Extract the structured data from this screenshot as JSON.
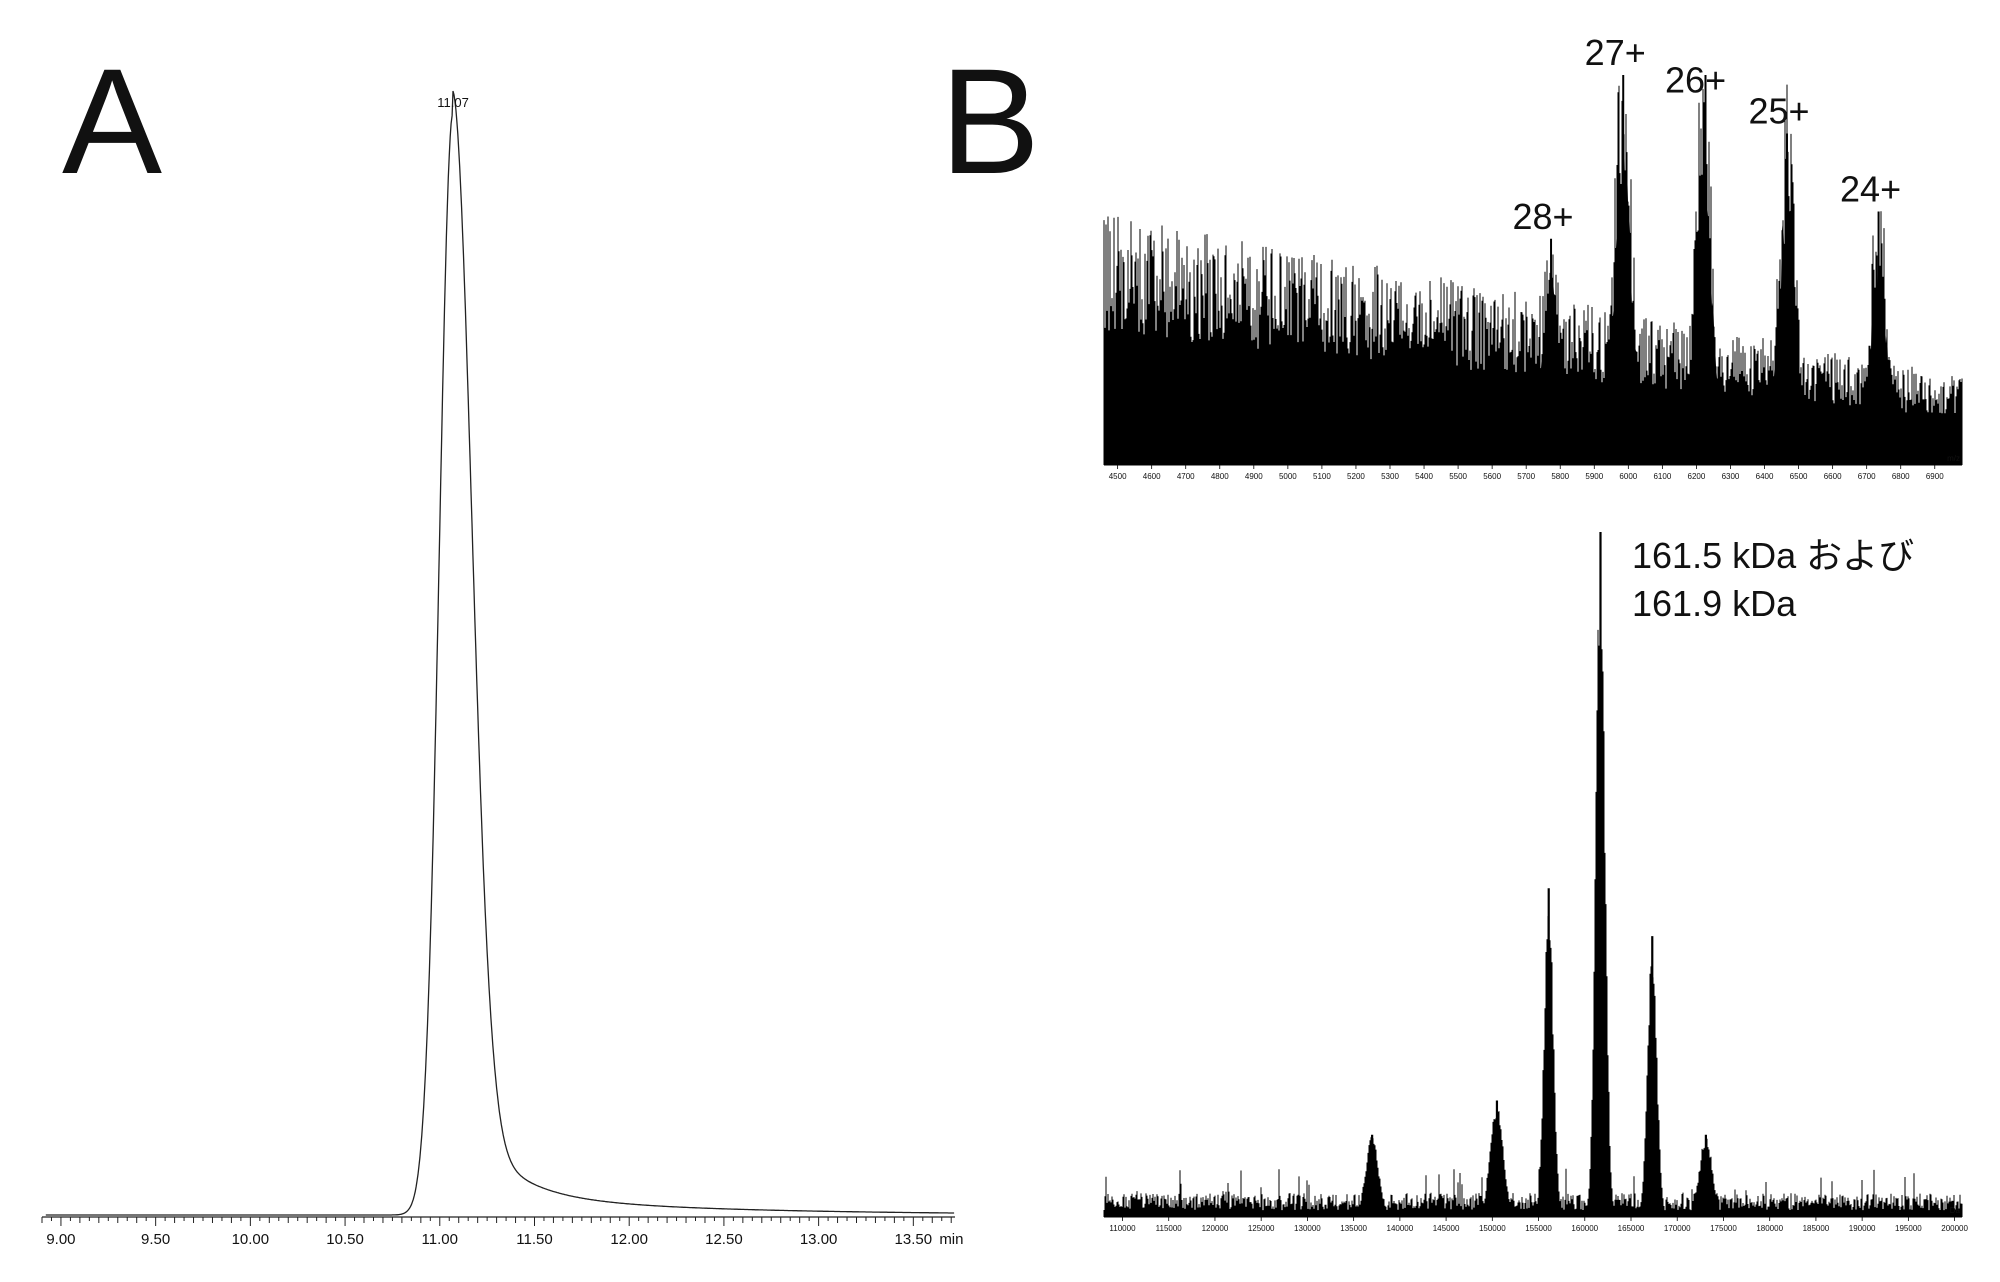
{
  "figure": {
    "panel_a_label": "A",
    "panel_b_label": "B"
  },
  "chart_data": [
    {
      "id": "chromatogram",
      "type": "line",
      "x_unit": "min",
      "xlim": [
        8.9,
        13.72
      ],
      "x_ticks": [
        "9.00",
        "9.50",
        "10.00",
        "10.50",
        "11.00",
        "11.50",
        "12.00",
        "12.50",
        "13.00",
        "13.50"
      ],
      "peak_label": "11.07",
      "peak": {
        "apex_min": 11.07,
        "relative_height": 1.0,
        "baseline_fraction": 0.0
      },
      "color": "#222222"
    },
    {
      "id": "raw_ms",
      "type": "line",
      "x_unit": "m/z",
      "xlim": [
        4460,
        6980
      ],
      "x_ticks": [
        "4500",
        "4600",
        "4700",
        "4800",
        "4900",
        "5000",
        "5100",
        "5200",
        "5300",
        "5400",
        "5500",
        "5600",
        "5700",
        "5800",
        "5900",
        "6000",
        "6100",
        "6200",
        "6300",
        "6400",
        "6500",
        "6600",
        "6700",
        "6800",
        "6900"
      ],
      "charge_states": [
        {
          "label": "28+",
          "mz": 5773,
          "relative_intensity": 0.58
        },
        {
          "label": "27+",
          "mz": 5985,
          "relative_intensity": 1.0
        },
        {
          "label": "26+",
          "mz": 6221,
          "relative_intensity": 0.93
        },
        {
          "label": "25+",
          "mz": 6466,
          "relative_intensity": 0.85
        },
        {
          "label": "24+",
          "mz": 6735,
          "relative_intensity": 0.65
        }
      ],
      "color": "#000000"
    },
    {
      "id": "deconvoluted",
      "type": "line",
      "x_unit": "Da",
      "xlim": [
        108000,
        200800
      ],
      "x_ticks": [
        "110000",
        "115000",
        "120000",
        "125000",
        "130000",
        "135000",
        "140000",
        "145000",
        "150000",
        "155000",
        "160000",
        "165000",
        "170000",
        "175000",
        "180000",
        "185000",
        "190000",
        "195000",
        "200000"
      ],
      "annotation_lines": [
        "161.5 kDa および",
        "161.9 kDa"
      ],
      "peaks": [
        {
          "mass_da": 137000,
          "relative_intensity": 0.12
        },
        {
          "mass_da": 150500,
          "relative_intensity": 0.17
        },
        {
          "mass_da": 156100,
          "relative_intensity": 0.48
        },
        {
          "mass_da": 161700,
          "relative_intensity": 1.0
        },
        {
          "mass_da": 167300,
          "relative_intensity": 0.41
        },
        {
          "mass_da": 173100,
          "relative_intensity": 0.12
        }
      ],
      "color": "#000000"
    }
  ]
}
